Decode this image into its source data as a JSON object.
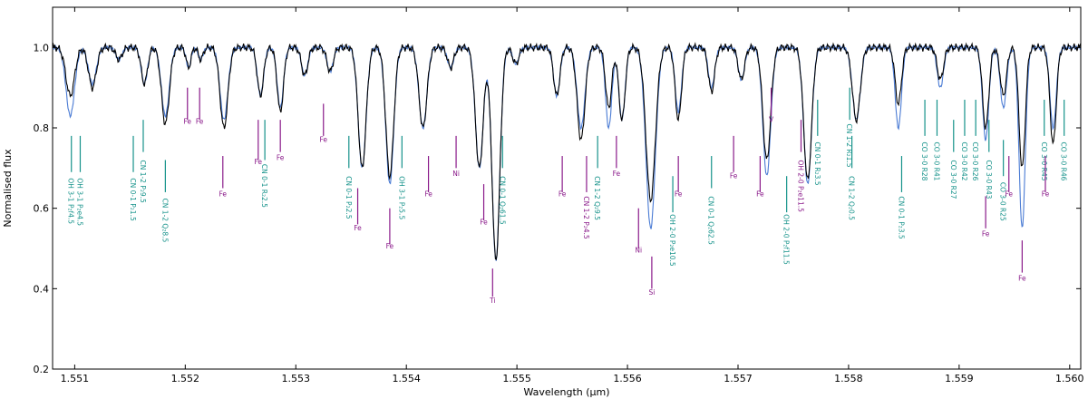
{
  "chart_data": {
    "type": "line",
    "xlabel": "Wavelength (μm)",
    "ylabel": "Normalised flux",
    "xlim": [
      1.5508,
      1.5601
    ],
    "ylim": [
      0.2,
      1.1
    ],
    "x_ticks": [
      "1.551",
      "1.552",
      "1.553",
      "1.554",
      "1.555",
      "1.556",
      "1.557",
      "1.558",
      "1.559",
      "1.560"
    ],
    "x_tick_values": [
      1.551,
      1.552,
      1.553,
      1.554,
      1.555,
      1.556,
      1.557,
      1.558,
      1.559,
      1.56
    ],
    "y_ticks": [
      "0.2",
      "0.4",
      "0.6",
      "0.8",
      "1.0"
    ],
    "y_tick_values": [
      0.2,
      0.4,
      0.6,
      0.8,
      1.0
    ],
    "colors": {
      "observed": "#000000",
      "model": "#4a7bd4",
      "molecular": "#15928a",
      "atomic": "#8a1a8a"
    },
    "continuum": 1.0,
    "absorption_lines": [
      {
        "x": 1.55096,
        "d1": 0.12,
        "w": 5.5e-05,
        "d2": 0.17
      },
      {
        "x": 1.55116,
        "d1": 0.1,
        "w": 5e-05,
        "d2": 0.09
      },
      {
        "x": 1.5514,
        "d1": 0.03,
        "w": 4e-05,
        "d2": 0.03
      },
      {
        "x": 1.55163,
        "d1": 0.09,
        "w": 4e-05,
        "d2": 0.09
      },
      {
        "x": 1.55182,
        "d1": 0.19,
        "w": 5e-05,
        "d2": 0.17
      },
      {
        "x": 1.55203,
        "d1": 0.05,
        "w": 3e-05,
        "d2": 0.05
      },
      {
        "x": 1.55214,
        "d1": 0.03,
        "w": 3e-05,
        "d2": 0.03
      },
      {
        "x": 1.55235,
        "d1": 0.2,
        "w": 5e-05,
        "d2": 0.18
      },
      {
        "x": 1.55268,
        "d1": 0.12,
        "w": 4e-05,
        "d2": 0.12
      },
      {
        "x": 1.55286,
        "d1": 0.16,
        "w": 4e-05,
        "d2": 0.15
      },
      {
        "x": 1.55308,
        "d1": 0.07,
        "w": 4e-05,
        "d2": 0.07
      },
      {
        "x": 1.55331,
        "d1": 0.06,
        "w": 4e-05,
        "d2": 0.06
      },
      {
        "x": 1.5536,
        "d1": 0.3,
        "w": 5e-05,
        "d2": 0.3
      },
      {
        "x": 1.55385,
        "d1": 0.32,
        "w": 5e-05,
        "d2": 0.34
      },
      {
        "x": 1.55415,
        "d1": 0.2,
        "w": 5e-05,
        "d2": 0.2
      },
      {
        "x": 1.5544,
        "d1": 0.05,
        "w": 4e-05,
        "d2": 0.05
      },
      {
        "x": 1.55466,
        "d1": 0.3,
        "w": 5e-05,
        "d2": 0.3
      },
      {
        "x": 1.55481,
        "d1": 0.53,
        "w": 5e-05,
        "d2": 0.53
      },
      {
        "x": 1.55499,
        "d1": 0.04,
        "w": 4e-05,
        "d2": 0.04
      },
      {
        "x": 1.55536,
        "d1": 0.12,
        "w": 4e-05,
        "d2": 0.12
      },
      {
        "x": 1.55558,
        "d1": 0.23,
        "w": 5e-05,
        "d2": 0.2
      },
      {
        "x": 1.55583,
        "d1": 0.15,
        "w": 4e-05,
        "d2": 0.2
      },
      {
        "x": 1.55595,
        "d1": 0.18,
        "w": 4e-05,
        "d2": 0.18
      },
      {
        "x": 1.55621,
        "d1": 0.38,
        "w": 6e-05,
        "d2": 0.45
      },
      {
        "x": 1.55646,
        "d1": 0.18,
        "w": 4e-05,
        "d2": 0.16
      },
      {
        "x": 1.55676,
        "d1": 0.11,
        "w": 4e-05,
        "d2": 0.1
      },
      {
        "x": 1.55703,
        "d1": 0.08,
        "w": 4e-05,
        "d2": 0.08
      },
      {
        "x": 1.55726,
        "d1": 0.28,
        "w": 5e-05,
        "d2": 0.32
      },
      {
        "x": 1.55763,
        "d1": 0.33,
        "w": 5e-05,
        "d2": 0.34
      },
      {
        "x": 1.55807,
        "d1": 0.18,
        "w": 5e-05,
        "d2": 0.18
      },
      {
        "x": 1.55845,
        "d1": 0.14,
        "w": 4e-05,
        "d2": 0.2
      },
      {
        "x": 1.55883,
        "d1": 0.08,
        "w": 4e-05,
        "d2": 0.1
      },
      {
        "x": 1.55924,
        "d1": 0.2,
        "w": 4e-05,
        "d2": 0.23
      },
      {
        "x": 1.55957,
        "d1": 0.3,
        "w": 4e-05,
        "d2": 0.45
      },
      {
        "x": 1.5594,
        "d1": 0.12,
        "w": 4e-05,
        "d2": 0.15
      },
      {
        "x": 1.55985,
        "d1": 0.24,
        "w": 4e-05,
        "d2": 0.2
      }
    ],
    "line_ids": [
      {
        "label": "OH 3-1 P₂f4.5",
        "x": 1.55097,
        "species": "molecular",
        "tick": [
          0.78,
          0.69
        ],
        "text_y": 0.675
      },
      {
        "label": "OH 3-1 P₂e4.5",
        "x": 1.55105,
        "species": "molecular",
        "tick": [
          0.78,
          0.69
        ],
        "text_y": 0.675
      },
      {
        "label": "CN 0-1 P₂1.5",
        "x": 1.55153,
        "species": "molecular",
        "tick": [
          0.78,
          0.69
        ],
        "text_y": 0.675
      },
      {
        "label": "CN 1-2 P₂9.5",
        "x": 1.55162,
        "species": "molecular",
        "tick": [
          0.82,
          0.74
        ],
        "text_y": 0.72
      },
      {
        "label": "CN 1-2 Q₂8.5",
        "x": 1.55182,
        "species": "molecular",
        "tick": [
          0.72,
          0.64
        ],
        "text_y": 0.625
      },
      {
        "label": "Fe",
        "x": 1.55202,
        "species": "atomic",
        "tick": [
          0.9,
          0.82
        ],
        "text_y": 0.81
      },
      {
        "label": "Fe",
        "x": 1.55213,
        "species": "atomic",
        "tick": [
          0.9,
          0.82
        ],
        "text_y": 0.81
      },
      {
        "label": "Fe",
        "x": 1.55234,
        "species": "atomic",
        "tick": [
          0.73,
          0.65
        ],
        "text_y": 0.63
      },
      {
        "label": "Fe",
        "x": 1.55266,
        "species": "atomic",
        "tick": [
          0.82,
          0.72
        ],
        "text_y": 0.71
      },
      {
        "label": "CN 0-1 R₂2.5",
        "x": 1.55272,
        "species": "molecular",
        "tick": [
          0.82,
          0.72
        ],
        "text_y": 0.71
      },
      {
        "label": "Fe",
        "x": 1.55286,
        "species": "atomic",
        "tick": [
          0.82,
          0.74
        ],
        "text_y": 0.72
      },
      {
        "label": "Fe",
        "x": 1.55325,
        "species": "atomic",
        "tick": [
          0.86,
          0.78
        ],
        "text_y": 0.765
      },
      {
        "label": "CN 0-1 P₂2.5",
        "x": 1.55348,
        "species": "molecular",
        "tick": [
          0.78,
          0.7
        ],
        "text_y": 0.68
      },
      {
        "label": "Fe",
        "x": 1.55356,
        "species": "atomic",
        "tick": [
          0.65,
          0.56
        ],
        "text_y": 0.545
      },
      {
        "label": "OH 3-1 P₂5.5",
        "x": 1.55396,
        "species": "molecular",
        "tick": [
          0.78,
          0.7
        ],
        "text_y": 0.68
      },
      {
        "label": "Fe",
        "x": 1.55385,
        "species": "atomic",
        "tick": [
          0.6,
          0.51
        ],
        "text_y": 0.5
      },
      {
        "label": "Fe",
        "x": 1.5542,
        "species": "atomic",
        "tick": [
          0.73,
          0.64
        ],
        "text_y": 0.63
      },
      {
        "label": "Ni",
        "x": 1.55445,
        "species": "atomic",
        "tick": [
          0.78,
          0.7
        ],
        "text_y": 0.68
      },
      {
        "label": "Fe",
        "x": 1.5547,
        "species": "atomic",
        "tick": [
          0.66,
          0.57
        ],
        "text_y": 0.56
      },
      {
        "label": "CN 0-1 Q₂61.5",
        "x": 1.55487,
        "species": "molecular",
        "tick": [
          0.78,
          0.7
        ],
        "text_y": 0.68
      },
      {
        "label": "Ti",
        "x": 1.55478,
        "species": "atomic",
        "tick": [
          0.45,
          0.38
        ],
        "text_y": 0.365
      },
      {
        "label": "Fe",
        "x": 1.55541,
        "species": "atomic",
        "tick": [
          0.73,
          0.64
        ],
        "text_y": 0.63
      },
      {
        "label": "CN 1-2 P₂4.5",
        "x": 1.55563,
        "species": "atomic",
        "tick": [
          0.73,
          0.64
        ],
        "text_y": 0.63
      },
      {
        "label": "CN 1-2 Q₂9.5",
        "x": 1.55573,
        "species": "molecular",
        "tick": [
          0.78,
          0.7
        ],
        "text_y": 0.68
      },
      {
        "label": "Fe",
        "x": 1.5559,
        "species": "atomic",
        "tick": [
          0.78,
          0.7
        ],
        "text_y": 0.68
      },
      {
        "label": "Ni",
        "x": 1.5561,
        "species": "atomic",
        "tick": [
          0.6,
          0.5
        ],
        "text_y": 0.49
      },
      {
        "label": "Si",
        "x": 1.55622,
        "species": "atomic",
        "tick": [
          0.48,
          0.4
        ],
        "text_y": 0.385
      },
      {
        "label": "OH 2-0 P₂e10.5",
        "x": 1.55641,
        "species": "molecular",
        "tick": [
          0.68,
          0.59
        ],
        "text_y": 0.585
      },
      {
        "label": "Fe",
        "x": 1.55646,
        "species": "atomic",
        "tick": [
          0.73,
          0.64
        ],
        "text_y": 0.63
      },
      {
        "label": "CN 0-1 Q₂62.5",
        "x": 1.55676,
        "species": "molecular",
        "tick": [
          0.73,
          0.65
        ],
        "text_y": 0.63
      },
      {
        "label": "Fe",
        "x": 1.55696,
        "species": "atomic",
        "tick": [
          0.78,
          0.69
        ],
        "text_y": 0.675
      },
      {
        "label": "Fe",
        "x": 1.5572,
        "species": "atomic",
        "tick": [
          0.73,
          0.64
        ],
        "text_y": 0.63
      },
      {
        "label": "V",
        "x": 1.5573,
        "species": "atomic",
        "tick": [
          0.9,
          0.83
        ],
        "text_y": 0.815
      },
      {
        "label": "OH 2-0 P₂f11.5",
        "x": 1.55744,
        "species": "molecular",
        "tick": [
          0.68,
          0.59
        ],
        "text_y": 0.585
      },
      {
        "label": "OH 2-0 P₂e11.5",
        "x": 1.55757,
        "species": "atomic",
        "tick": [
          0.82,
          0.74
        ],
        "text_y": 0.72
      },
      {
        "label": "CN 0-1 R₂3.5",
        "x": 1.55772,
        "species": "molecular",
        "tick": [
          0.87,
          0.78
        ],
        "text_y": 0.765
      },
      {
        "label": "CN 1-2 R₂1.5",
        "x": 1.55801,
        "species": "molecular",
        "tick": [
          0.9,
          0.82
        ],
        "text_y": 0.81
      },
      {
        "label": "CN 1-2 Q₂0.5",
        "x": 1.55803,
        "species": "molecular",
        "tick": [
          0.78,
          0.7
        ],
        "text_y": 0.68
      },
      {
        "label": "CN 0-1 P₂3.5",
        "x": 1.55848,
        "species": "molecular",
        "tick": [
          0.73,
          0.64
        ],
        "text_y": 0.63
      },
      {
        "label": "CO 3-0 R28",
        "x": 1.55869,
        "species": "molecular",
        "tick": [
          0.87,
          0.78
        ],
        "text_y": 0.765
      },
      {
        "label": "CO 3-0 R41",
        "x": 1.5588,
        "species": "molecular",
        "tick": [
          0.87,
          0.78
        ],
        "text_y": 0.765
      },
      {
        "label": "CO 3-0 R27",
        "x": 1.55895,
        "species": "molecular",
        "tick": [
          0.82,
          0.74
        ],
        "text_y": 0.72
      },
      {
        "label": "CO 3-0 R42",
        "x": 1.55905,
        "species": "molecular",
        "tick": [
          0.87,
          0.78
        ],
        "text_y": 0.765
      },
      {
        "label": "CO 3-0 R26",
        "x": 1.55915,
        "species": "molecular",
        "tick": [
          0.87,
          0.78
        ],
        "text_y": 0.765
      },
      {
        "label": "CO 3-0 R43",
        "x": 1.55927,
        "species": "molecular",
        "tick": [
          0.82,
          0.74
        ],
        "text_y": 0.72
      },
      {
        "label": "CO 3-0 R25",
        "x": 1.5594,
        "species": "molecular",
        "tick": [
          0.77,
          0.68
        ],
        "text_y": 0.665
      },
      {
        "label": "Fe",
        "x": 1.55924,
        "species": "atomic",
        "tick": [
          0.63,
          0.55
        ],
        "text_y": 0.53
      },
      {
        "label": "Fe",
        "x": 1.55945,
        "species": "atomic",
        "tick": [
          0.73,
          0.64
        ],
        "text_y": 0.63
      },
      {
        "label": "Fe",
        "x": 1.55957,
        "species": "atomic",
        "tick": [
          0.52,
          0.44
        ],
        "text_y": 0.42
      },
      {
        "label": "CO 3-0 R45",
        "x": 1.55977,
        "species": "molecular",
        "tick": [
          0.87,
          0.78
        ],
        "text_y": 0.765
      },
      {
        "label": "Fe",
        "x": 1.55978,
        "species": "atomic",
        "tick": [
          0.73,
          0.64
        ],
        "text_y": 0.63
      },
      {
        "label": "CO 3-0 R46",
        "x": 1.55995,
        "species": "molecular",
        "tick": [
          0.87,
          0.78
        ],
        "text_y": 0.765
      }
    ]
  }
}
